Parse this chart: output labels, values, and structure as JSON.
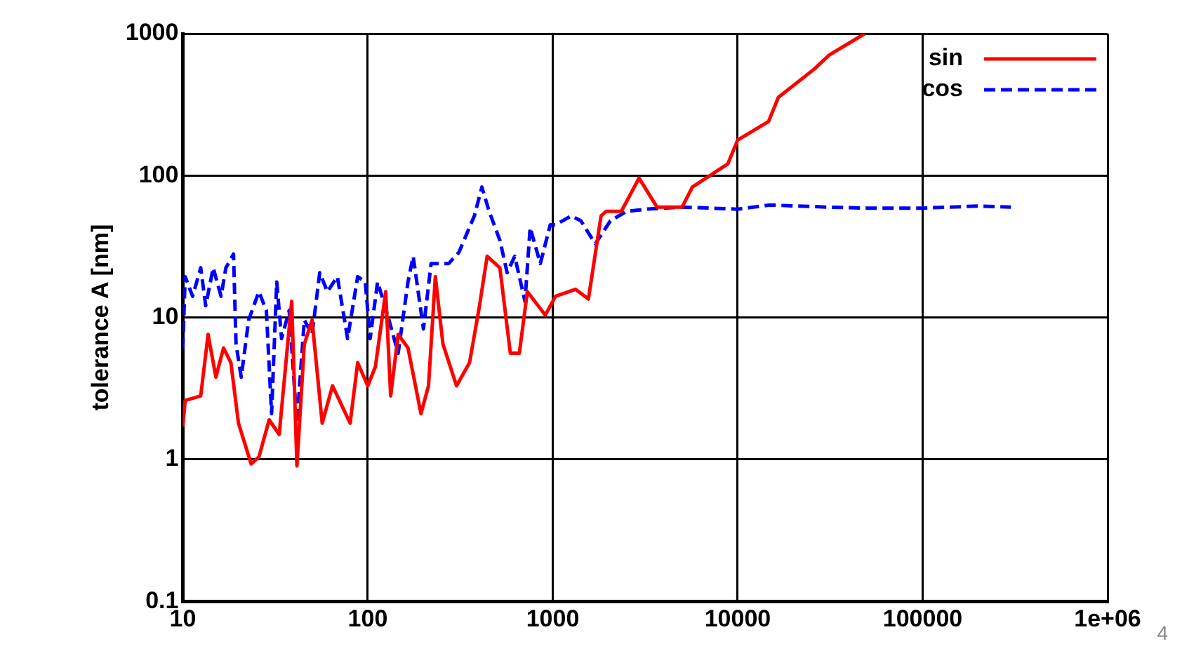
{
  "chart_data": {
    "type": "line",
    "ylabel": "tolerance A [nm]",
    "log": "xy",
    "grid": true,
    "legend": "top right",
    "marker": "none",
    "xlim": [
      10,
      1000000
    ],
    "xticks": [
      10,
      100,
      1000,
      10000,
      100000,
      {
        "value": 1000000,
        "label": "1e+06"
      }
    ],
    "ylim": [
      0.1,
      1000
    ],
    "yticks": [
      0.1,
      1,
      10,
      100,
      1000
    ],
    "annotations": [
      "4"
    ],
    "series": [
      {
        "name": "sin",
        "color": "#ff0000",
        "line_style": "solid",
        "x": [
          10,
          10.3,
          12.5,
          13.7,
          15.1,
          16.6,
          18.2,
          20,
          23.4,
          25.8,
          29.3,
          33.2,
          38.8,
          41.4,
          45.4,
          50,
          56.7,
          64.5,
          80.3,
          88.2,
          100,
          110,
          125,
          133,
          146,
          165,
          194,
          213,
          232,
          255,
          302,
          355,
          402,
          442,
          518,
          590,
          660,
          729,
          912,
          1035,
          1330,
          1560,
          1825,
          1945,
          2350,
          2930,
          3660,
          5010,
          5690,
          8850,
          10000,
          14700,
          16600,
          25900,
          31300,
          48600
        ],
        "values": [
          1.7,
          2.6,
          2.8,
          7.6,
          3.8,
          6.1,
          4.8,
          1.8,
          0.93,
          1.04,
          1.9,
          1.5,
          13,
          0.9,
          6.5,
          9.6,
          1.8,
          3.3,
          1.8,
          4.8,
          3.3,
          4.5,
          15.2,
          2.8,
          7.6,
          6.1,
          2.1,
          3.3,
          19.4,
          6.5,
          3.3,
          4.8,
          12.1,
          27,
          22.4,
          5.6,
          5.6,
          15.2,
          10.4,
          14.1,
          15.8,
          13.5,
          52,
          56,
          56,
          96,
          60,
          60,
          83,
          121,
          178,
          241,
          356,
          562,
          708,
          1000
        ]
      },
      {
        "name": "cos",
        "color": "#0000ff",
        "line_style": "dashed",
        "x": [
          10,
          10.3,
          11.3,
          12.5,
          13.3,
          14.6,
          16.1,
          17.1,
          18.8,
          19.4,
          20.7,
          22.7,
          25.8,
          28.3,
          30.2,
          32.2,
          34.2,
          37.6,
          41.4,
          45.4,
          50,
          55,
          60.5,
          68.5,
          77.8,
          88.2,
          97,
          103,
          113,
          128,
          146,
          165,
          176,
          200,
          220,
          274,
          311,
          377,
          414,
          453,
          518,
          567,
          623,
          708,
          755,
          857,
          970,
          1035,
          1260,
          1420,
          1700,
          2050,
          2510,
          3200,
          5000,
          10000,
          15000,
          30000,
          50000,
          100000,
          200000,
          300000
        ],
        "values": [
          6,
          19.4,
          14.1,
          22.4,
          12.1,
          22.4,
          14.1,
          22.4,
          28,
          6.5,
          3.8,
          9.6,
          15.2,
          11.2,
          2.1,
          17.8,
          7.1,
          11.2,
          1.8,
          9.6,
          7.6,
          20.7,
          15.2,
          19.4,
          7.1,
          19.4,
          17.8,
          7.1,
          17.8,
          10.4,
          5.6,
          17.8,
          27,
          8.3,
          24,
          24,
          28.8,
          52,
          83,
          56,
          35,
          20.7,
          27,
          13,
          43,
          24,
          45,
          45,
          52,
          48,
          33,
          48,
          56,
          58,
          60,
          58,
          62,
          60,
          59,
          59,
          61,
          60
        ]
      }
    ]
  }
}
